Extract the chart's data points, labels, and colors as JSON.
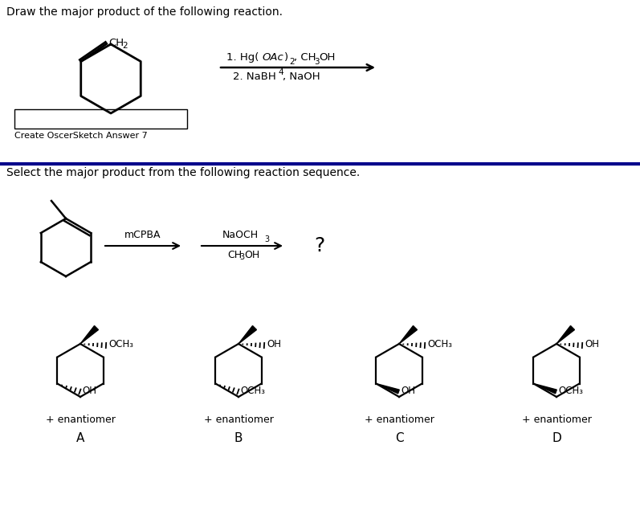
{
  "bg_color": "#ffffff",
  "text_color": "#000000",
  "title1": "Draw the major product of the following reaction.",
  "answer_box_label": "Create OscerSketch Answer 7",
  "divider_color": "#00008B",
  "title2": "Select the major product from the following reaction sequence.",
  "labels": [
    "A",
    "B",
    "C",
    "D"
  ],
  "enantiomer_label": "+ enantiomer",
  "fig_w": 7.97,
  "fig_h": 6.56,
  "dpi": 100
}
